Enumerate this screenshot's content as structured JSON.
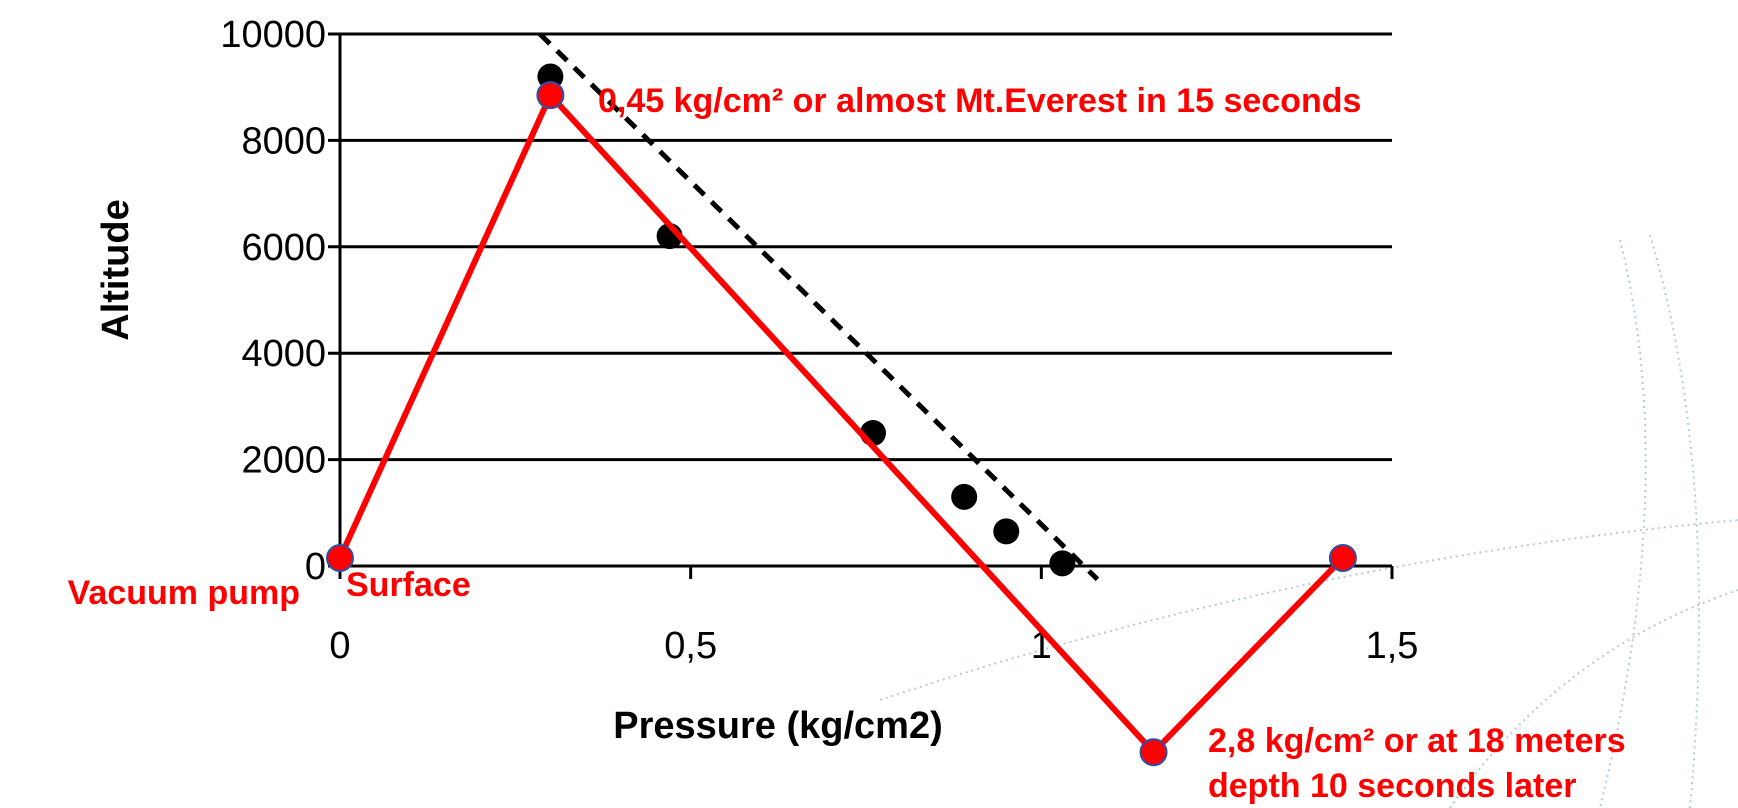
{
  "chart_data": {
    "type": "line",
    "xlabel": "Pressure (kg/cm2)",
    "ylabel": "Altitude",
    "xlim": [
      0,
      1.5
    ],
    "ylim": [
      0,
      10000
    ],
    "x_ticks": [
      "0",
      "0,5",
      "1",
      "1,5"
    ],
    "y_ticks": [
      "0",
      "2000",
      "4000",
      "6000",
      "8000",
      "10000"
    ],
    "grid": "horizontal",
    "series": [
      {
        "style": "scatter",
        "color": "#000000",
        "points": [
          {
            "x": 0.3,
            "y": 9200
          },
          {
            "x": 0.47,
            "y": 6200
          },
          {
            "x": 0.76,
            "y": 2500
          },
          {
            "x": 0.89,
            "y": 1300
          },
          {
            "x": 0.95,
            "y": 650
          },
          {
            "x": 1.03,
            "y": 50
          }
        ]
      },
      {
        "style": "dashed-trendline",
        "color": "#000000",
        "points": [
          {
            "x": 0.285,
            "y": 10000
          },
          {
            "x": 1.08,
            "y": -250
          }
        ]
      },
      {
        "style": "line",
        "color": "#ff0000",
        "points": [
          {
            "x": 0,
            "y": 150
          },
          {
            "x": 0.3,
            "y": 8850
          },
          {
            "x": 1.16,
            "y": -3500
          },
          {
            "x": 1.43,
            "y": 150
          }
        ]
      }
    ],
    "annotations": {
      "peak": "0,45 kg/cm² or almost Mt.Everest in 15 seconds",
      "surface": "Surface",
      "vacuum": "Vacuum pump",
      "depth_line1": "2,8 kg/cm² or at 18 meters",
      "depth_line2": "depth 10 seconds later"
    }
  }
}
